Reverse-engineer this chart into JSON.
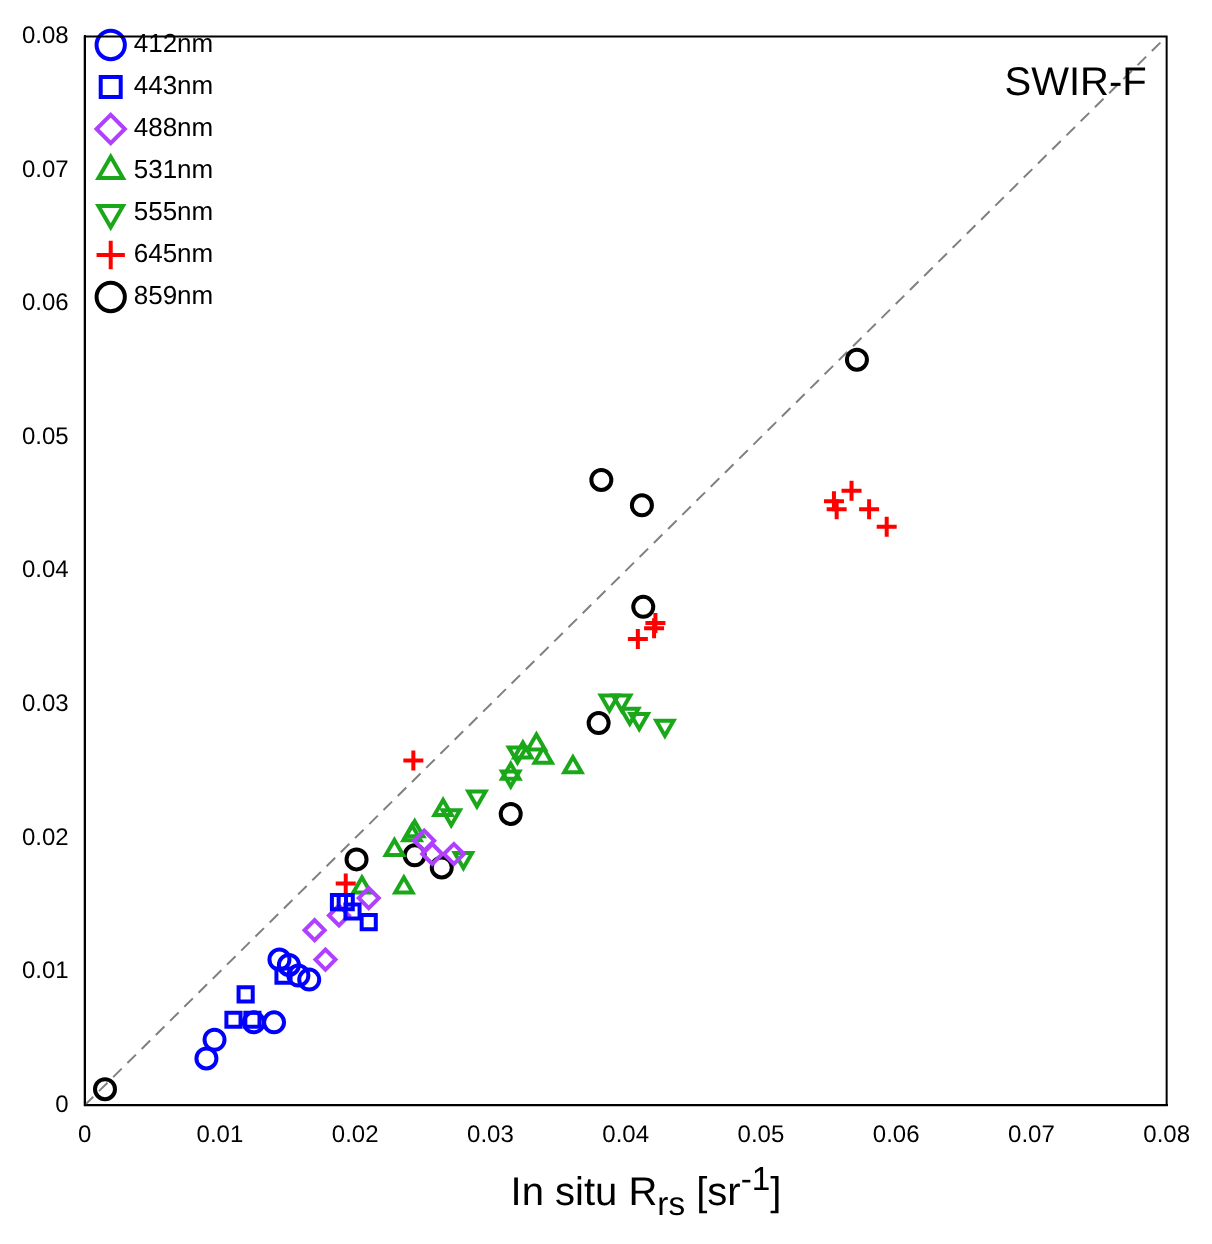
{
  "chart_data": {
    "type": "scatter",
    "xlabel": "In situ R$_{rs}$ [sr$^{-1}$]",
    "annotations": [
      "SWIR-F"
    ],
    "xlim": [
      0,
      0.08
    ],
    "ylim": [
      0,
      0.08
    ],
    "xticks": [
      0,
      0.01,
      0.02,
      0.03,
      0.04,
      0.05,
      0.06,
      0.07,
      0.08
    ],
    "yticks": [
      0,
      0.01,
      0.02,
      0.03,
      0.04,
      0.05,
      0.06,
      0.07,
      0.08
    ],
    "grid": false,
    "legend": "top left",
    "series": [
      {
        "type": "line",
        "color": "#808080",
        "line_style": "dashed",
        "marker": "none",
        "x": [
          0,
          0.08
        ],
        "values": [
          0,
          0.08
        ]
      },
      {
        "name": "412nm",
        "color": "#0000ff",
        "marker": "circle",
        "x": [
          0.009,
          0.0096,
          0.0125,
          0.014,
          0.0158,
          0.0166,
          0.0144,
          0.0151
        ],
        "values": [
          0.0035,
          0.0049,
          0.0062,
          0.0062,
          0.0097,
          0.0094,
          0.0109,
          0.0105
        ]
      },
      {
        "name": "443nm",
        "color": "#0000ff",
        "marker": "square",
        "x": [
          0.0119,
          0.011,
          0.0124,
          0.0147,
          0.0188,
          0.0198,
          0.021,
          0.0193
        ],
        "values": [
          0.0083,
          0.0064,
          0.0064,
          0.0097,
          0.0152,
          0.0145,
          0.0137,
          0.0152
        ]
      },
      {
        "name": "488nm",
        "color": "#b040ff",
        "marker": "diamond",
        "x": [
          0.0178,
          0.017,
          0.0188,
          0.021,
          0.0251,
          0.0273,
          0.0257
        ],
        "values": [
          0.0109,
          0.0131,
          0.0142,
          0.0155,
          0.0198,
          0.0188,
          0.0188
        ]
      },
      {
        "name": "531nm",
        "color": "#1aa81a",
        "marker": "triangle",
        "x": [
          0.0205,
          0.0236,
          0.0229,
          0.0242,
          0.0244,
          0.0265,
          0.0315,
          0.0324,
          0.0334,
          0.0339,
          0.0361
        ],
        "values": [
          0.0163,
          0.0163,
          0.0191,
          0.0202,
          0.0205,
          0.0221,
          0.0248,
          0.0264,
          0.027,
          0.026,
          0.0253
        ]
      },
      {
        "name": "555nm",
        "color": "#1aa81a",
        "marker": "triangle-down",
        "x": [
          0.028,
          0.029,
          0.0271,
          0.0315,
          0.032,
          0.0388,
          0.0397,
          0.0403,
          0.041,
          0.0429
        ],
        "values": [
          0.0185,
          0.0231,
          0.0217,
          0.0246,
          0.0264,
          0.0303,
          0.0303,
          0.0293,
          0.0289,
          0.0284
        ]
      },
      {
        "name": "645nm",
        "color": "#ff0000",
        "marker": "cross",
        "x": [
          0.0243,
          0.0193,
          0.0409,
          0.0421,
          0.0422,
          0.0554,
          0.0556,
          0.0567,
          0.058,
          0.0593
        ],
        "values": [
          0.0258,
          0.0166,
          0.0349,
          0.0357,
          0.0361,
          0.0452,
          0.0446,
          0.046,
          0.0446,
          0.0433
        ]
      },
      {
        "name": "859nm",
        "color": "#000000",
        "marker": "circle",
        "x": [
          0.0015,
          0.0201,
          0.0244,
          0.0264,
          0.0315,
          0.038,
          0.0382,
          0.0412,
          0.0413,
          0.0571
        ],
        "values": [
          0.0012,
          0.0184,
          0.0187,
          0.0178,
          0.0218,
          0.0286,
          0.0468,
          0.0449,
          0.0373,
          0.0558
        ]
      }
    ]
  }
}
